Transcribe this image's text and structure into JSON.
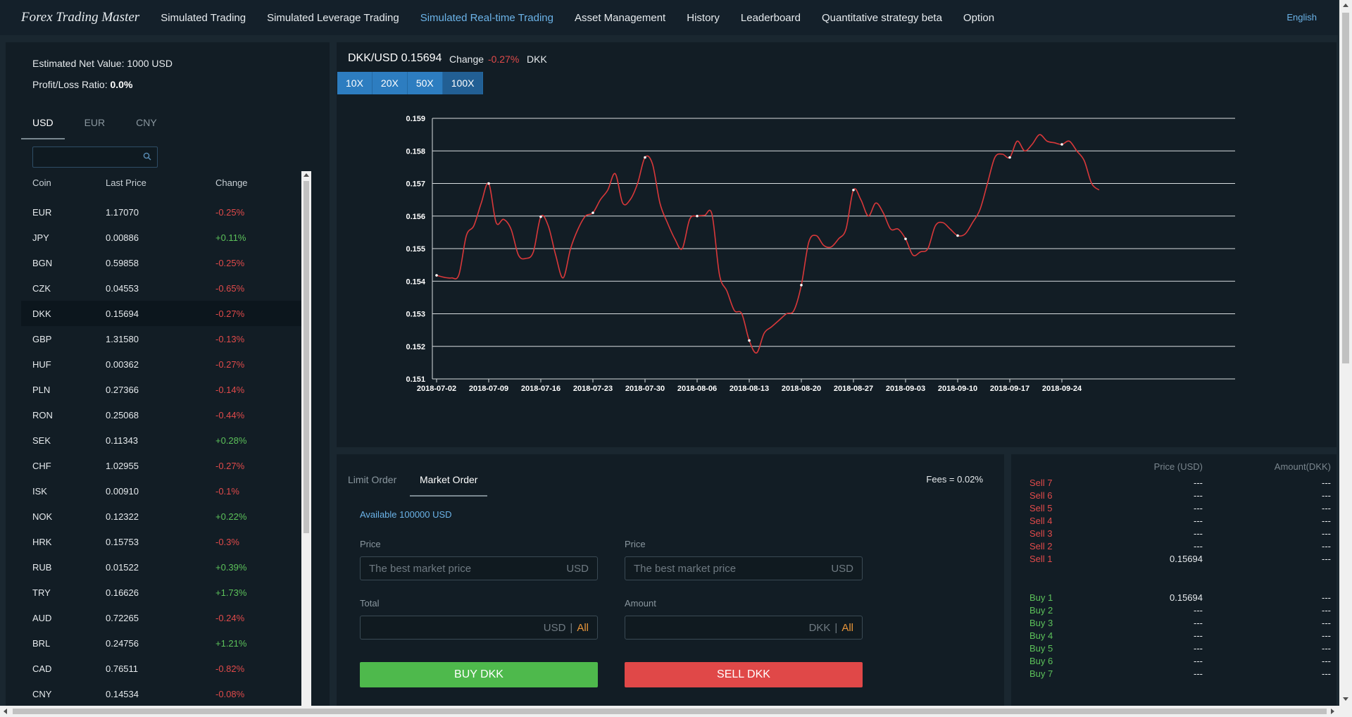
{
  "nav": {
    "brand": "Forex Trading Master",
    "items": [
      {
        "label": "Simulated Trading",
        "active": false
      },
      {
        "label": "Simulated Leverage Trading",
        "active": false
      },
      {
        "label": "Simulated Real-time Trading",
        "active": true
      },
      {
        "label": "Asset Management",
        "active": false
      },
      {
        "label": "History",
        "active": false
      },
      {
        "label": "Leaderboard",
        "active": false
      },
      {
        "label": "Quantitative strategy beta",
        "active": false
      },
      {
        "label": "Option",
        "active": false
      }
    ],
    "language": "English"
  },
  "account": {
    "net_value_label": "Estimated Net Value:",
    "net_value": "1000 USD",
    "pl_label": "Profit/Loss Ratio:",
    "pl_value": "0.0%"
  },
  "market_tabs": [
    "USD",
    "EUR",
    "CNY"
  ],
  "market_tab_active": "USD",
  "search": {
    "placeholder": "",
    "icon": "search-icon"
  },
  "coin_table": {
    "headers": [
      "Coin",
      "Last Price",
      "Change"
    ],
    "rows": [
      {
        "coin": "EUR",
        "price": "1.17070",
        "change": "-0.25%"
      },
      {
        "coin": "JPY",
        "price": "0.00886",
        "change": "+0.11%"
      },
      {
        "coin": "BGN",
        "price": "0.59858",
        "change": "-0.25%"
      },
      {
        "coin": "CZK",
        "price": "0.04553",
        "change": "-0.65%"
      },
      {
        "coin": "DKK",
        "price": "0.15694",
        "change": "-0.27%",
        "selected": true
      },
      {
        "coin": "GBP",
        "price": "1.31580",
        "change": "-0.13%"
      },
      {
        "coin": "HUF",
        "price": "0.00362",
        "change": "-0.27%"
      },
      {
        "coin": "PLN",
        "price": "0.27366",
        "change": "-0.14%"
      },
      {
        "coin": "RON",
        "price": "0.25068",
        "change": "-0.44%"
      },
      {
        "coin": "SEK",
        "price": "0.11343",
        "change": "+0.28%"
      },
      {
        "coin": "CHF",
        "price": "1.02955",
        "change": "-0.27%"
      },
      {
        "coin": "ISK",
        "price": "0.00910",
        "change": "-0.1%"
      },
      {
        "coin": "NOK",
        "price": "0.12322",
        "change": "+0.22%"
      },
      {
        "coin": "HRK",
        "price": "0.15753",
        "change": "-0.3%"
      },
      {
        "coin": "RUB",
        "price": "0.01522",
        "change": "+0.39%"
      },
      {
        "coin": "TRY",
        "price": "0.16626",
        "change": "+1.73%"
      },
      {
        "coin": "AUD",
        "price": "0.72265",
        "change": "-0.24%"
      },
      {
        "coin": "BRL",
        "price": "0.24756",
        "change": "+1.21%"
      },
      {
        "coin": "CAD",
        "price": "0.76511",
        "change": "-0.82%"
      },
      {
        "coin": "CNY",
        "price": "0.14534",
        "change": "-0.08%"
      }
    ]
  },
  "pair": {
    "title": "DKK/USD 0.15694",
    "change_label": "Change",
    "change_value": "-0.27%",
    "currency": "DKK"
  },
  "leverage_buttons": [
    "10X",
    "20X",
    "50X",
    "100X"
  ],
  "leverage_active": "100X",
  "chart_data": {
    "type": "line",
    "title": "",
    "xlabel": "",
    "ylabel": "",
    "ylim": [
      0.151,
      0.159
    ],
    "yticks": [
      "0.159",
      "0.158",
      "0.157",
      "0.156",
      "0.155",
      "0.154",
      "0.153",
      "0.152",
      "0.151"
    ],
    "xticks": [
      "2018-07-02",
      "2018-07-09",
      "2018-07-16",
      "2018-07-23",
      "2018-07-30",
      "2018-08-06",
      "2018-08-13",
      "2018-08-20",
      "2018-08-27",
      "2018-09-03",
      "2018-09-10",
      "2018-09-17",
      "2018-09-24"
    ],
    "grid": true,
    "line_color": "#d9383a",
    "series": [
      {
        "x": [
          "2018-07-02",
          "2018-07-03",
          "2018-07-04",
          "2018-07-05",
          "2018-07-06",
          "2018-07-07",
          "2018-07-08",
          "2018-07-09",
          "2018-07-10",
          "2018-07-11",
          "2018-07-12",
          "2018-07-13",
          "2018-07-14",
          "2018-07-15",
          "2018-07-16",
          "2018-07-17",
          "2018-07-18",
          "2018-07-19",
          "2018-07-20",
          "2018-07-21",
          "2018-07-22",
          "2018-07-23",
          "2018-07-24",
          "2018-07-25",
          "2018-07-26",
          "2018-07-27",
          "2018-07-28",
          "2018-07-29",
          "2018-07-30",
          "2018-07-31",
          "2018-08-01",
          "2018-08-02",
          "2018-08-03",
          "2018-08-04",
          "2018-08-05",
          "2018-08-06",
          "2018-08-07",
          "2018-08-08",
          "2018-08-09",
          "2018-08-10",
          "2018-08-11",
          "2018-08-12",
          "2018-08-13",
          "2018-08-14",
          "2018-08-15",
          "2018-08-16",
          "2018-08-17",
          "2018-08-18",
          "2018-08-19",
          "2018-08-20",
          "2018-08-21",
          "2018-08-22",
          "2018-08-23",
          "2018-08-24",
          "2018-08-25",
          "2018-08-26",
          "2018-08-27",
          "2018-08-28",
          "2018-08-29",
          "2018-08-30",
          "2018-08-31",
          "2018-09-01",
          "2018-09-02",
          "2018-09-03",
          "2018-09-04",
          "2018-09-05",
          "2018-09-06",
          "2018-09-07",
          "2018-09-08",
          "2018-09-09",
          "2018-09-10",
          "2018-09-11",
          "2018-09-12",
          "2018-09-13",
          "2018-09-14",
          "2018-09-15",
          "2018-09-16",
          "2018-09-17",
          "2018-09-18",
          "2018-09-19",
          "2018-09-20",
          "2018-09-21",
          "2018-09-22",
          "2018-09-23",
          "2018-09-24",
          "2018-09-25",
          "2018-09-26",
          "2018-09-27",
          "2018-09-28",
          "2018-09-29"
        ],
        "values": [
          0.15418,
          0.15412,
          0.1541,
          0.1542,
          0.1554,
          0.1557,
          0.1564,
          0.157,
          0.1558,
          0.1559,
          0.1556,
          0.1548,
          0.1547,
          0.1549,
          0.15598,
          0.1557,
          0.1548,
          0.1541,
          0.155,
          0.1556,
          0.156,
          0.1561,
          0.1565,
          0.1568,
          0.1573,
          0.1564,
          0.1565,
          0.157,
          0.1578,
          0.1576,
          0.1564,
          0.1558,
          0.1553,
          0.155,
          0.1559,
          0.156,
          0.15602,
          0.15605,
          0.1542,
          0.1537,
          0.1531,
          0.153,
          0.15218,
          0.1518,
          0.1524,
          0.1526,
          0.1528,
          0.153,
          0.1531,
          0.15388,
          0.1552,
          0.1554,
          0.1551,
          0.15505,
          0.1553,
          0.1556,
          0.1568,
          0.1565,
          0.156,
          0.1564,
          0.1561,
          0.1556,
          0.1556,
          0.1553,
          0.1548,
          0.1549,
          0.155,
          0.1557,
          0.1558,
          0.1556,
          0.1554,
          0.15545,
          0.1558,
          0.1562,
          0.157,
          0.1578,
          0.1579,
          0.1578,
          0.1583,
          0.158,
          0.1582,
          0.1585,
          0.1583,
          0.15825,
          0.1582,
          0.1583,
          0.158,
          0.1577,
          0.157,
          0.1568
        ]
      }
    ]
  },
  "order": {
    "tabs": [
      "Limit Order",
      "Market Order"
    ],
    "active_tab": "Market Order",
    "fees": "Fees = 0.02%",
    "available": "Available 100000 USD",
    "buy": {
      "price_label": "Price",
      "price_placeholder": "The best market price",
      "price_unit": "USD",
      "total_label": "Total",
      "total_unit": "USD",
      "all_label": "All",
      "button": "BUY DKK"
    },
    "sell": {
      "price_label": "Price",
      "price_placeholder": "The best market price",
      "price_unit": "USD",
      "amount_label": "Amount",
      "amount_unit": "DKK",
      "all_label": "All",
      "button": "SELL DKK"
    },
    "colors": {
      "buy": "#4eb94c",
      "sell": "#e04848",
      "all": "#e8953a"
    }
  },
  "orderbook": {
    "price_header": "Price (USD)",
    "amount_header": "Amount(DKK)",
    "sells": [
      {
        "label": "Sell 7",
        "price": "---",
        "amount": "---"
      },
      {
        "label": "Sell 6",
        "price": "---",
        "amount": "---"
      },
      {
        "label": "Sell 5",
        "price": "---",
        "amount": "---"
      },
      {
        "label": "Sell 4",
        "price": "---",
        "amount": "---"
      },
      {
        "label": "Sell 3",
        "price": "---",
        "amount": "---"
      },
      {
        "label": "Sell 2",
        "price": "---",
        "amount": "---"
      },
      {
        "label": "Sell 1",
        "price": "0.15694",
        "amount": "---"
      }
    ],
    "buys": [
      {
        "label": "Buy 1",
        "price": "0.15694",
        "amount": "---"
      },
      {
        "label": "Buy 2",
        "price": "---",
        "amount": "---"
      },
      {
        "label": "Buy 3",
        "price": "---",
        "amount": "---"
      },
      {
        "label": "Buy 4",
        "price": "---",
        "amount": "---"
      },
      {
        "label": "Buy 5",
        "price": "---",
        "amount": "---"
      },
      {
        "label": "Buy 6",
        "price": "---",
        "amount": "---"
      },
      {
        "label": "Buy 7",
        "price": "---",
        "amount": "---"
      }
    ]
  }
}
